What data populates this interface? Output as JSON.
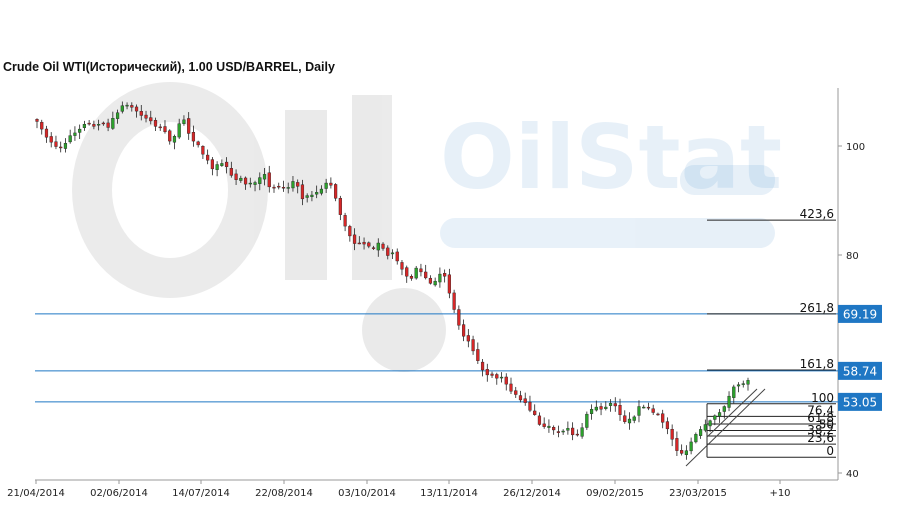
{
  "chart_data": {
    "type": "candlestick",
    "title": "Crude Oil WTI(Исторический), 1.00 USD/BARREL, Daily",
    "watermark": "OilStat",
    "y_ticks": [
      100,
      80,
      40
    ],
    "ylim": [
      40,
      112
    ],
    "x_ticks": [
      "21/04/2014",
      "02/06/2014",
      "14/07/2014",
      "22/08/2014",
      "03/10/2014",
      "13/11/2014",
      "26/12/2014",
      "09/02/2015",
      "23/03/2015",
      "+10"
    ],
    "up_color": "#2ca02c",
    "down_color": "#d62728",
    "horizontal_levels": [
      {
        "label": "69.19",
        "value": 69.19,
        "color": "#1f77c4"
      },
      {
        "label": "58.74",
        "value": 58.74,
        "color": "#1f77c4"
      },
      {
        "label": "53.05",
        "value": 53.05,
        "color": "#1f77c4"
      }
    ],
    "fibonacci_levels": [
      {
        "label": "423,6",
        "value": 86.4
      },
      {
        "label": "261,8",
        "value": 69.2
      },
      {
        "label": "161,8",
        "value": 58.9
      },
      {
        "label": "100",
        "value": 52.7
      },
      {
        "label": "76,4",
        "value": 50.4
      },
      {
        "label": "61,8",
        "value": 49.0
      },
      {
        "label": "50",
        "value": 47.8
      },
      {
        "label": "38,2",
        "value": 46.8
      },
      {
        "label": "23,6",
        "value": 45.3
      },
      {
        "label": "0",
        "value": 42.9
      }
    ],
    "close_series": [
      104.5,
      103.1,
      101.6,
      100.7,
      99.9,
      99.8,
      100.5,
      101.9,
      102.4,
      103.1,
      104,
      104.1,
      103.6,
      104,
      104.2,
      103.4,
      105.1,
      106.1,
      107.4,
      107.5,
      107.1,
      106.4,
      105.6,
      105.1,
      104.6,
      103.6,
      103.4,
      102.6,
      100.9,
      101.8,
      104.1,
      104.8,
      102.3,
      100.9,
      100.2,
      98.5,
      97.4,
      95.8,
      96.6,
      96.8,
      96.2,
      94.6,
      93.8,
      94.1,
      93,
      93.2,
      93.3,
      94.2,
      94.8,
      92.5,
      92.4,
      92.5,
      92.4,
      92.4,
      93.5,
      92.6,
      90.3,
      90.9,
      91,
      91.5,
      92.1,
      93.2,
      92.8,
      90.4,
      87.4,
      85.3,
      83.5,
      82.1,
      82.2,
      82,
      81.6,
      81.2,
      82.2,
      81.2,
      79.9,
      80.4,
      78.9,
      77.4,
      76.1,
      75.7,
      77.6,
      76.9,
      75.8,
      74.8,
      75.2,
      76.5,
      76.1,
      73,
      70,
      67.1,
      65.1,
      64.2,
      62.4,
      60.6,
      58.9,
      58,
      57.9,
      57.4,
      57.6,
      56.3,
      55,
      54.4,
      53.4,
      52.9,
      51.5,
      50.7,
      48.9,
      48.5,
      48.6,
      47.9,
      47.4,
      47.7,
      48.2,
      47,
      47,
      48.3,
      50.8,
      51.7,
      52.1,
      51.7,
      52.1,
      52.8,
      52.3,
      50.7,
      49.4,
      49.9,
      50.3,
      52.2,
      52.1,
      51.9,
      51.1,
      50.8,
      49.3,
      48.1,
      46.2,
      44.1,
      43.6,
      44.1,
      45.7,
      47.1,
      48,
      48.9,
      49.6,
      50.5,
      51.1,
      52.2,
      54.1,
      55.8,
      56.2,
      56.4,
      57
    ]
  }
}
